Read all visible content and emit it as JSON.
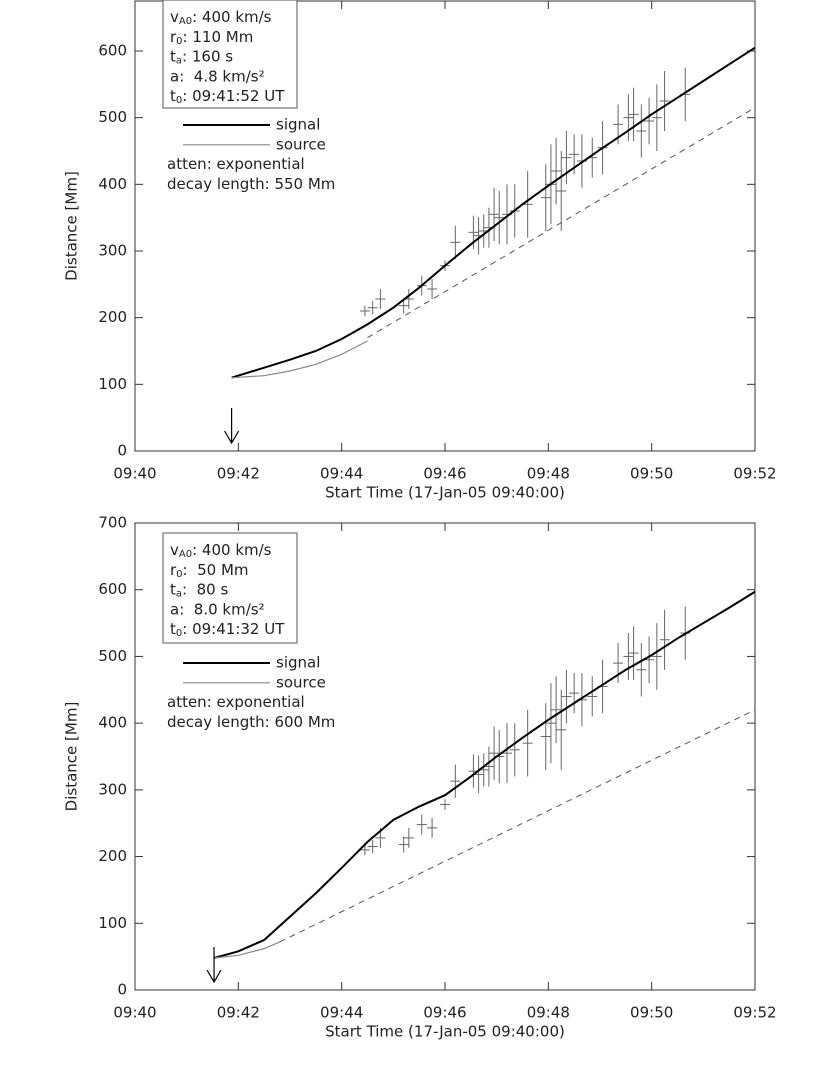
{
  "chart_data": [
    {
      "type": "line",
      "xlabel": "Start Time (17-Jan-05 09:40:00)",
      "ylabel": "Distance [Mm]",
      "xlim": [
        0,
        12
      ],
      "xticks": [
        {
          "value": 0,
          "label": "09:40"
        },
        {
          "value": 2,
          "label": "09:42"
        },
        {
          "value": 4,
          "label": "09:44"
        },
        {
          "value": 6,
          "label": "09:46"
        },
        {
          "value": 8,
          "label": "09:48"
        },
        {
          "value": 10,
          "label": "09:50"
        },
        {
          "value": 12,
          "label": "09:52"
        }
      ],
      "ylim": [
        0,
        675
      ],
      "yticks": [
        0,
        100,
        200,
        300,
        400,
        500,
        600
      ],
      "params": [
        {
          "symbol": "v",
          "sub": "A0",
          "text": ": 400 km/s"
        },
        {
          "symbol": "r",
          "sub": "0",
          "text": ": 110 Mm"
        },
        {
          "symbol": "t",
          "sub": "a",
          "text": ": 160 s"
        },
        {
          "symbol": "a",
          "text": ":  4.8 km/s²"
        },
        {
          "symbol": "t",
          "sub": "0",
          "text": ": 09:41:52 UT"
        }
      ],
      "notes": [
        "atten: exponential",
        "decay length: 550 Mm"
      ],
      "series": [
        {
          "name": "signal",
          "color": "#000000",
          "x": [
            1.87,
            2.5,
            3,
            3.5,
            4,
            4.5,
            5,
            5.5,
            6,
            6.5,
            7,
            7.5,
            8,
            8.5,
            9,
            9.5,
            10,
            10.5,
            11,
            11.5,
            12
          ],
          "values": [
            110,
            125,
            137,
            150,
            168,
            190,
            215,
            245,
            278,
            310,
            340,
            370,
            398,
            425,
            452,
            478,
            505,
            530,
            555,
            580,
            605
          ]
        },
        {
          "name": "source",
          "color": "#888888",
          "x": [
            1.87,
            2.5,
            3,
            3.5,
            4,
            4.5
          ],
          "values": [
            110,
            113,
            120,
            130,
            145,
            165
          ]
        },
        {
          "color": "#555555",
          "dash": true,
          "x": [
            4.5,
            12
          ],
          "values": [
            170,
            515
          ]
        }
      ],
      "observations": {
        "color": "#666666",
        "x": [
          4.45,
          4.6,
          4.75,
          5.2,
          5.3,
          5.55,
          5.75,
          6.0,
          6.2,
          6.55,
          6.65,
          6.75,
          6.85,
          6.95,
          7.05,
          7.2,
          7.35,
          7.6,
          7.95,
          8.05,
          8.15,
          8.25,
          8.35,
          8.5,
          8.65,
          8.85,
          9.05,
          9.35,
          9.55,
          9.65,
          9.8,
          9.95,
          10.1,
          10.25,
          10.65
        ],
        "values": [
          210,
          215,
          228,
          218,
          228,
          248,
          243,
          278,
          313,
          328,
          323,
          330,
          335,
          355,
          350,
          355,
          360,
          370,
          380,
          400,
          420,
          390,
          440,
          445,
          435,
          440,
          455,
          490,
          500,
          505,
          480,
          495,
          500,
          525,
          535
        ],
        "errors": [
          8,
          10,
          15,
          12,
          15,
          15,
          15,
          8,
          25,
          25,
          28,
          25,
          30,
          40,
          40,
          45,
          40,
          50,
          50,
          60,
          50,
          60,
          40,
          30,
          40,
          30,
          40,
          30,
          35,
          40,
          40,
          35,
          50,
          45,
          40
        ]
      }
    },
    {
      "type": "line",
      "xlabel": "Start Time (17-Jan-05 09:40:00)",
      "ylabel": "Distance [Mm]",
      "xlim": [
        0,
        12
      ],
      "xticks": [
        {
          "value": 0,
          "label": "09:40"
        },
        {
          "value": 2,
          "label": "09:42"
        },
        {
          "value": 4,
          "label": "09:44"
        },
        {
          "value": 6,
          "label": "09:46"
        },
        {
          "value": 8,
          "label": "09:48"
        },
        {
          "value": 10,
          "label": "09:50"
        },
        {
          "value": 12,
          "label": "09:52"
        }
      ],
      "ylim": [
        0,
        700
      ],
      "yticks": [
        0,
        100,
        200,
        300,
        400,
        500,
        600,
        700
      ],
      "params": [
        {
          "symbol": "v",
          "sub": "A0",
          "text": ": 400 km/s"
        },
        {
          "symbol": "r",
          "sub": "0",
          "text": ":  50 Mm"
        },
        {
          "symbol": "t",
          "sub": "a",
          "text": ":  80 s"
        },
        {
          "symbol": "a",
          "text": ":  8.0 km/s²"
        },
        {
          "symbol": "t",
          "sub": "0",
          "text": ": 09:41:32 UT"
        }
      ],
      "notes": [
        "atten: exponential",
        "decay length: 600 Mm"
      ],
      "series": [
        {
          "name": "signal",
          "color": "#000000",
          "x": [
            1.53,
            2,
            2.5,
            3,
            3.5,
            4,
            4.5,
            5,
            5.5,
            6,
            6.5,
            7,
            7.5,
            8,
            8.5,
            9,
            9.5,
            10,
            10.5,
            11,
            11.5,
            12
          ],
          "values": [
            48,
            58,
            75,
            110,
            145,
            183,
            222,
            255,
            275,
            292,
            320,
            350,
            378,
            405,
            430,
            455,
            480,
            502,
            527,
            550,
            573,
            597
          ]
        },
        {
          "name": "source",
          "color": "#888888",
          "x": [
            1.53,
            2,
            2.5,
            2.8
          ],
          "values": [
            48,
            52,
            62,
            72
          ]
        },
        {
          "color": "#555555",
          "dash": true,
          "x": [
            2.8,
            12
          ],
          "values": [
            72,
            420
          ]
        }
      ],
      "observations": {
        "color": "#666666",
        "x": [
          4.45,
          4.6,
          4.75,
          5.2,
          5.3,
          5.55,
          5.75,
          6.0,
          6.2,
          6.55,
          6.65,
          6.75,
          6.85,
          6.95,
          7.05,
          7.2,
          7.35,
          7.6,
          7.95,
          8.05,
          8.15,
          8.25,
          8.35,
          8.5,
          8.65,
          8.85,
          9.05,
          9.35,
          9.55,
          9.65,
          9.8,
          9.95,
          10.1,
          10.25,
          10.65
        ],
        "values": [
          210,
          215,
          228,
          218,
          228,
          248,
          243,
          278,
          313,
          328,
          323,
          330,
          335,
          355,
          350,
          355,
          360,
          370,
          380,
          400,
          420,
          390,
          440,
          445,
          435,
          440,
          455,
          490,
          500,
          505,
          480,
          495,
          500,
          525,
          535
        ],
        "errors": [
          8,
          10,
          15,
          12,
          15,
          15,
          15,
          8,
          25,
          25,
          28,
          25,
          30,
          40,
          40,
          45,
          40,
          50,
          50,
          60,
          50,
          60,
          40,
          30,
          40,
          30,
          40,
          30,
          35,
          40,
          40,
          35,
          50,
          45,
          40
        ]
      }
    }
  ]
}
